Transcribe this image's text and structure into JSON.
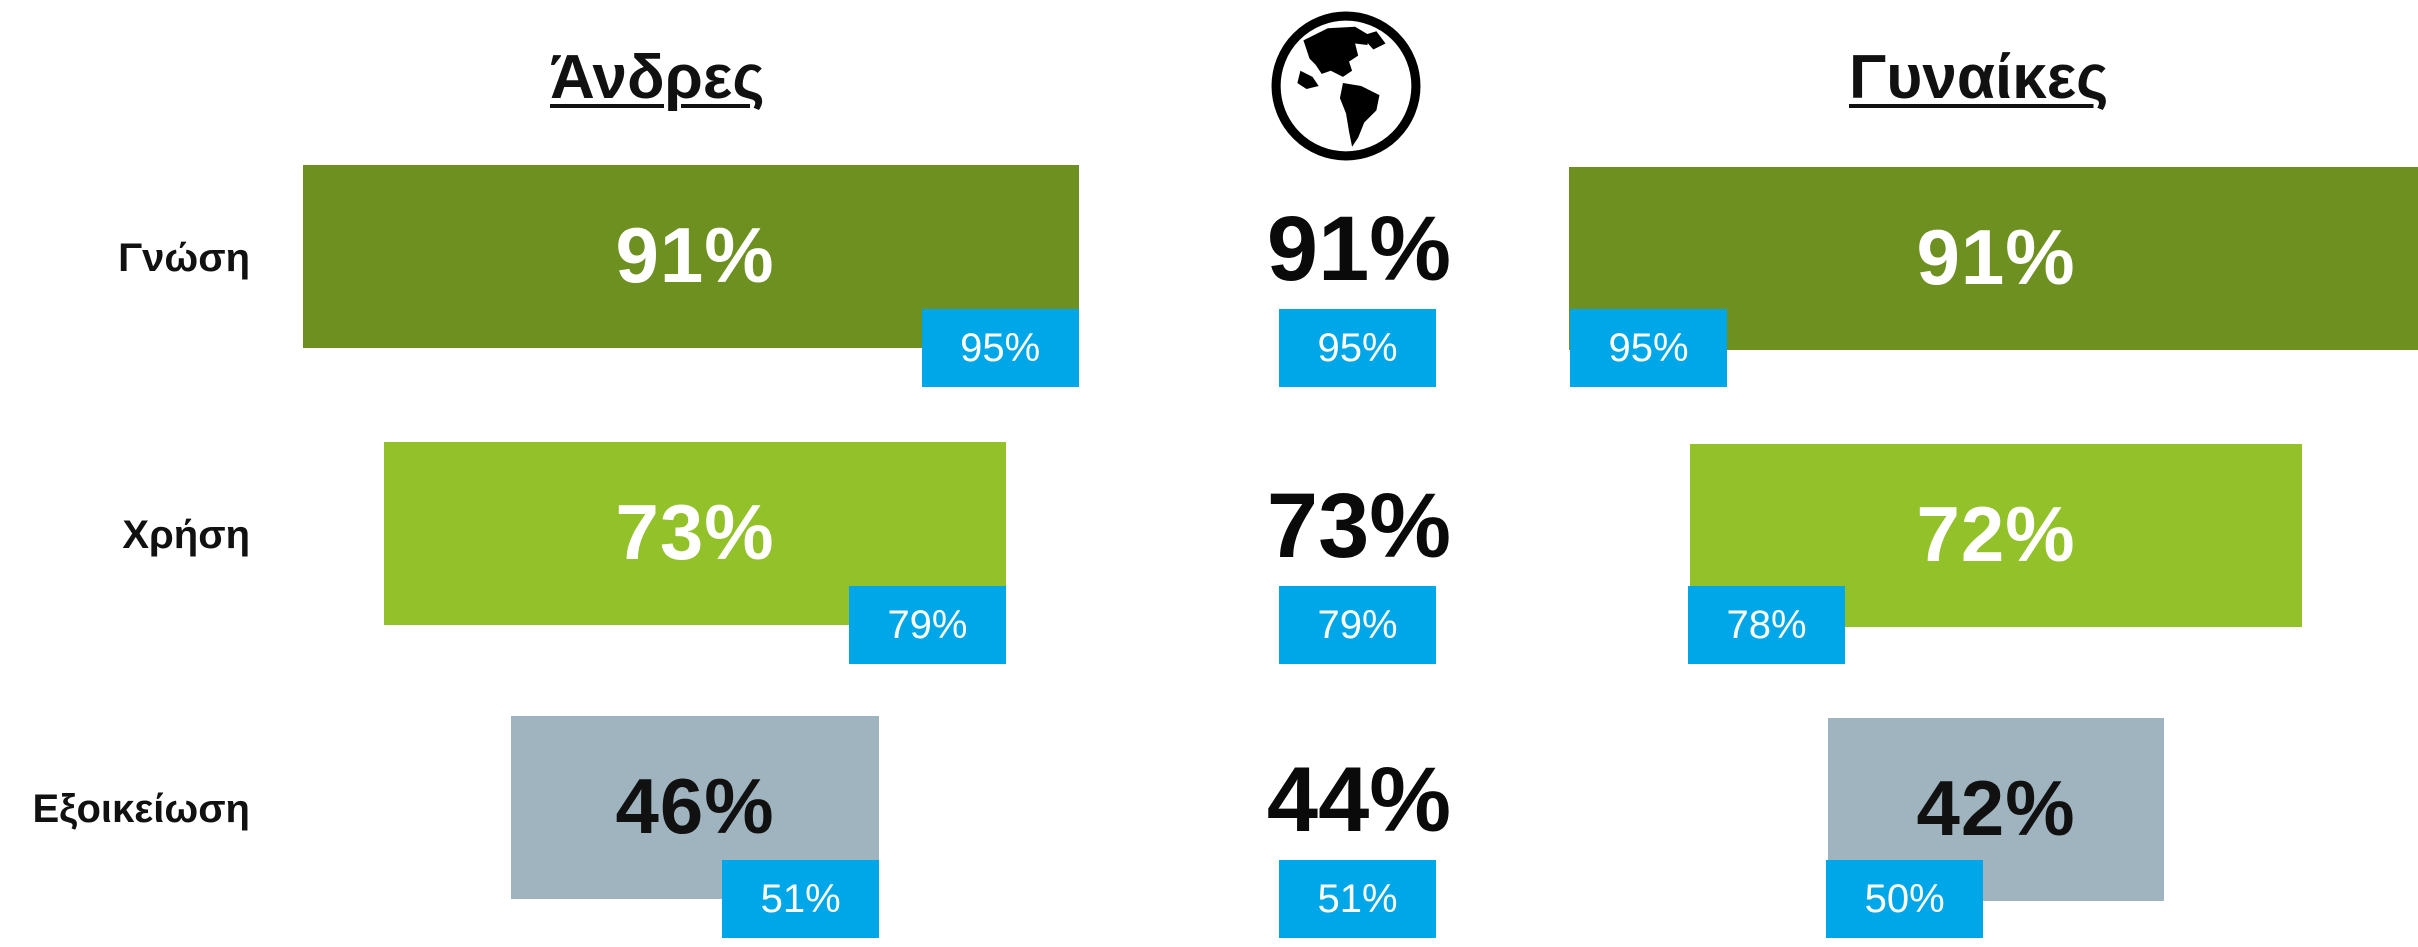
{
  "headings": {
    "men": "Άνδρες",
    "women": "Γυναίκες"
  },
  "colors": {
    "knowledge": "#6e9020",
    "usage": "#92c12a",
    "familiarity": "#9fb4be",
    "badge": "#00a7e8",
    "light_text": "#ffffff",
    "dark_text": "#111111"
  },
  "icons": {
    "world": "globe-americas-icon"
  },
  "chart_data": {
    "type": "bar",
    "categories": [
      "Γνώση",
      "Χρήση",
      "Εξοικείωση"
    ],
    "series": [
      {
        "name": "Άνδρες",
        "values": [
          91,
          73,
          46
        ],
        "labels": [
          "91%",
          "73%",
          "46%"
        ]
      },
      {
        "name": "Γυναίκες",
        "values": [
          91,
          72,
          42
        ],
        "labels": [
          "91%",
          "72%",
          "42%"
        ]
      }
    ],
    "world": {
      "values": [
        91,
        73,
        44
      ],
      "labels": [
        "91%",
        "73%",
        "44%"
      ]
    },
    "comparison": {
      "men": [
        "95%",
        "79%",
        "51%"
      ],
      "world": [
        "95%",
        "79%",
        "51%"
      ],
      "women": [
        "95%",
        "78%",
        "50%"
      ]
    },
    "xlim": [
      0,
      100
    ]
  }
}
